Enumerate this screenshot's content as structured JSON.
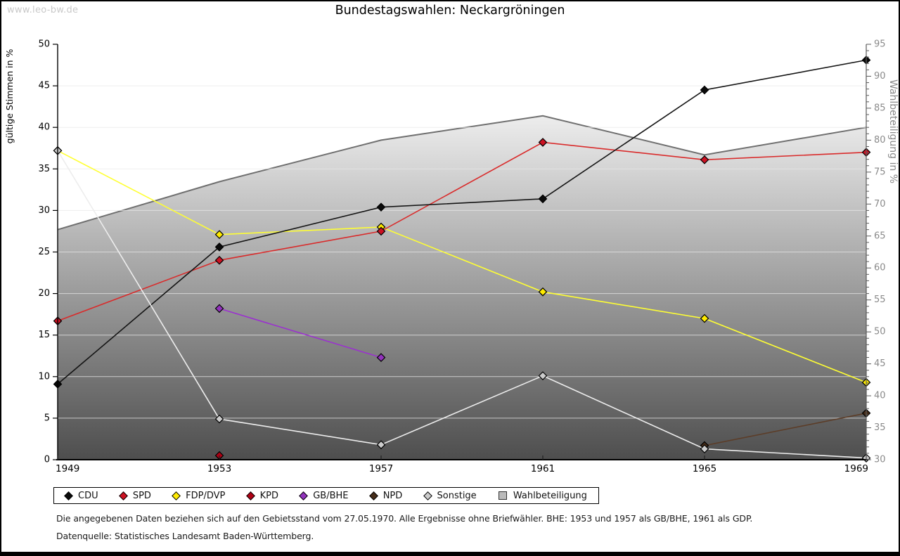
{
  "watermark": "www.leo-bw.de",
  "title": "Bundestagswahlen: Neckargröningen",
  "chart_data": {
    "type": "line",
    "title": "Bundestagswahlen: Neckargröningen",
    "x": [
      1949,
      1953,
      1957,
      1961,
      1965,
      1969
    ],
    "left_axis": {
      "label": "gültige Stimmen in %",
      "min": 0,
      "max": 50,
      "step": 5
    },
    "right_axis": {
      "label": "Wahlbeteiligung in %",
      "min": 30,
      "max": 95,
      "step": 5,
      "minor_step": 1
    },
    "grid": "horizontal",
    "legend_position": "bottom",
    "series": [
      {
        "name": "CDU",
        "axis": "left",
        "line_color": "#141414",
        "marker_color": "#0a0a0a",
        "values": [
          9.1,
          25.6,
          30.4,
          31.4,
          44.5,
          48.1
        ]
      },
      {
        "name": "SPD",
        "axis": "left",
        "line_color": "#d92b2b",
        "marker_color": "#cc1122",
        "values": [
          16.7,
          24.0,
          27.5,
          38.2,
          36.1,
          37.0
        ]
      },
      {
        "name": "FDP/DVP",
        "axis": "left",
        "line_color": "#ffff33",
        "marker_color": "#ffeb00",
        "values": [
          37.2,
          27.1,
          28.0,
          20.2,
          17.0,
          9.3
        ]
      },
      {
        "name": "KPD",
        "axis": "left",
        "line_color": "#b00014",
        "marker_color": "#b00014",
        "values": [
          null,
          0.5,
          null,
          null,
          null,
          null
        ]
      },
      {
        "name": "GB/BHE",
        "axis": "left",
        "line_color": "#9b30d0",
        "marker_color": "#9232bc",
        "values": [
          null,
          18.2,
          12.3,
          null,
          null,
          null
        ]
      },
      {
        "name": "NPD",
        "axis": "left",
        "line_color": "#5c3d28",
        "marker_color": "#452c18",
        "values": [
          null,
          null,
          null,
          null,
          1.7,
          5.6
        ]
      },
      {
        "name": "Sonstige",
        "axis": "left",
        "line_color": "#ededed",
        "marker_color": "#cccccc",
        "values": [
          37.2,
          4.9,
          1.8,
          10.1,
          1.3,
          0.2
        ]
      }
    ],
    "turnout": {
      "name": "Wahlbeteiligung",
      "axis": "right",
      "values": [
        66.0,
        73.5,
        80.0,
        83.8,
        77.7,
        82.0
      ],
      "fill_top": "#fbfbfb",
      "fill_bottom": "#4e4e4e",
      "boundary_color": "#6f6f6f",
      "legend_fill": "#bbbbbb"
    },
    "grid_color": "#e9e9e9",
    "axis_colors": {
      "left": "#000000",
      "right": "#8a8a8a",
      "right_line": "#5a5a5a"
    }
  },
  "notes": [
    "Die angegebenen Daten beziehen sich auf den Gebietsstand vom 27.05.1970. Alle Ergebnisse ohne Briefwähler. BHE: 1953 und 1957 als GB/BHE, 1961 als GDP.",
    "Datenquelle: Statistisches Landesamt Baden-Württemberg."
  ]
}
